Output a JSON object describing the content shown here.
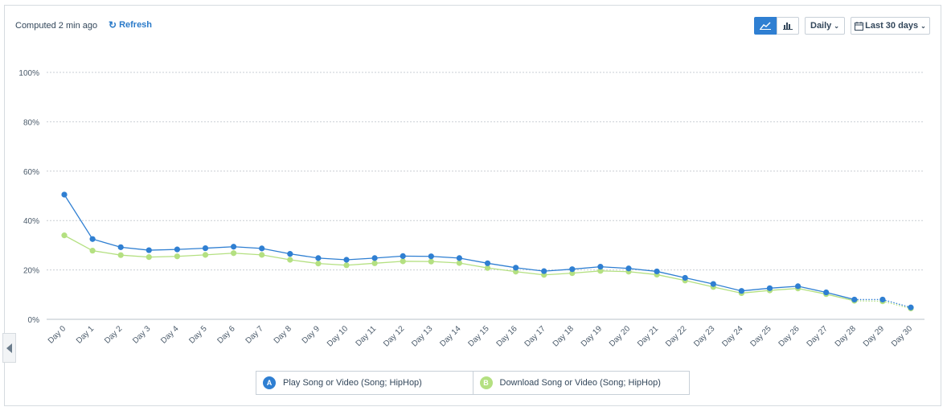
{
  "header": {
    "computed": "Computed 2 min ago",
    "refresh_label": "Refresh",
    "refresh_icon": "refresh-icon"
  },
  "toolbar": {
    "line_icon": "line-chart-icon",
    "bar_icon": "bar-chart-icon",
    "interval_label": "Daily",
    "range_label": "Last 30 days",
    "calendar_icon": "calendar-icon",
    "active_color": "#2f7fd2"
  },
  "legend": [
    {
      "badge": "A",
      "label": "Play Song or Video (Song; HipHop)",
      "color": "#2f7fd2"
    },
    {
      "badge": "B",
      "label": "Download Song or Video (Song; HipHop)",
      "color": "#b4e081"
    }
  ],
  "chart_data": {
    "type": "line",
    "title": "",
    "xlabel": "",
    "ylabel": "",
    "ylim": [
      0,
      100
    ],
    "yticks": [
      "0%",
      "20%",
      "40%",
      "60%",
      "80%",
      "100%"
    ],
    "grid": true,
    "categories": [
      "Day 0",
      "Day 1",
      "Day 2",
      "Day 3",
      "Day 4",
      "Day 5",
      "Day 6",
      "Day 7",
      "Day 8",
      "Day 9",
      "Day 10",
      "Day 11",
      "Day 12",
      "Day 13",
      "Day 14",
      "Day 15",
      "Day 16",
      "Day 17",
      "Day 18",
      "Day 19",
      "Day 20",
      "Day 21",
      "Day 22",
      "Day 23",
      "Day 24",
      "Day 25",
      "Day 26",
      "Day 27",
      "Day 28",
      "Day 29",
      "Day 30"
    ],
    "series": [
      {
        "name": "Play Song or Video (Song; HipHop)",
        "color": "#2f7fd2",
        "values": [
          50.5,
          32.5,
          29.2,
          28.0,
          28.3,
          28.8,
          29.4,
          28.7,
          26.5,
          24.8,
          24.1,
          24.8,
          25.6,
          25.5,
          24.8,
          22.7,
          20.9,
          19.5,
          20.3,
          21.3,
          20.6,
          19.4,
          16.8,
          14.3,
          11.5,
          12.6,
          13.4,
          10.9,
          8.0,
          8.0,
          4.8
        ]
      },
      {
        "name": "Download Song or Video (Song; HipHop)",
        "color": "#b4e081",
        "values": [
          34.0,
          27.8,
          26.0,
          25.2,
          25.5,
          26.1,
          26.8,
          26.1,
          24.1,
          22.6,
          21.9,
          22.7,
          23.5,
          23.4,
          22.8,
          20.8,
          19.3,
          18.0,
          18.7,
          19.6,
          19.3,
          18.1,
          15.7,
          13.1,
          10.6,
          11.7,
          12.5,
          10.2,
          7.5,
          7.3,
          4.4
        ]
      }
    ]
  }
}
